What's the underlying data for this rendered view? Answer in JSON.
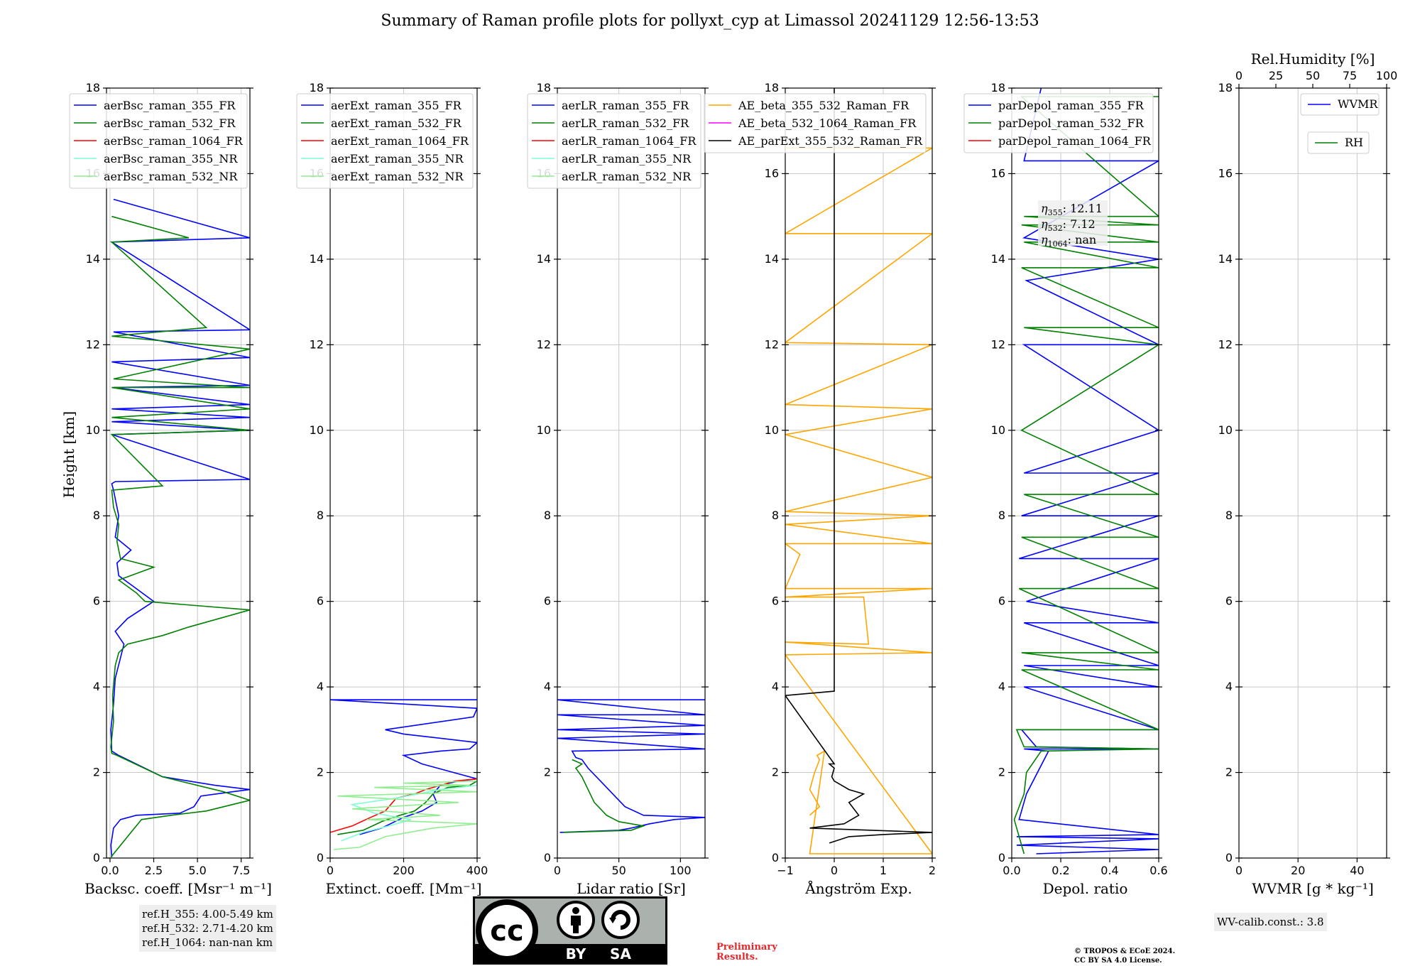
{
  "title": "Summary of Raman profile plots for pollyxt_cyp at Limassol 20241129 12:56-13:53",
  "ylabel": "Height [km]",
  "y_ticks": [
    "0",
    "2",
    "4",
    "6",
    "8",
    "10",
    "12",
    "14",
    "16",
    "18"
  ],
  "chart_data": [
    {
      "type": "line",
      "xlabel": "Backsc. coeff. [Msr⁻¹ m⁻¹]",
      "xlim": [
        -0.2,
        8
      ],
      "ylim": [
        0,
        18
      ],
      "x_ticks": [
        "0.0",
        "2.5",
        "5.0",
        "7.5"
      ],
      "x_tick_values": [
        0,
        2.5,
        5,
        7.5
      ],
      "legend": "top-left",
      "grid": true,
      "series": [
        {
          "name": "aerBsc_raman_355_FR",
          "color": "#0000ff",
          "x": [
            0.1,
            0.05,
            0.2,
            0.6,
            1.5,
            4.0,
            4.8,
            5.2,
            7.0,
            8.0,
            6.0,
            3.0,
            0.5,
            0.1,
            0.05,
            0.2,
            0.3,
            0.8,
            0.3,
            1.0,
            2.5,
            1.5,
            0.5,
            0.4,
            1.2,
            0.3,
            0.5,
            0.2,
            0.1,
            0.3,
            8,
            0.1,
            8,
            0.1,
            8,
            0.1,
            8,
            0.2,
            8,
            0.1,
            8,
            0.2,
            8,
            0.1,
            8,
            0.2
          ],
          "y": [
            0.02,
            0.3,
            0.7,
            0.9,
            1.0,
            1.05,
            1.2,
            1.45,
            1.55,
            1.6,
            1.7,
            1.9,
            2.4,
            2.5,
            3.0,
            3.6,
            4.2,
            5.0,
            5.3,
            5.6,
            6.0,
            6.3,
            6.6,
            6.9,
            7.2,
            7.5,
            8.0,
            8.6,
            8.75,
            8.8,
            8.85,
            9.9,
            10.0,
            10.2,
            10.3,
            10.5,
            10.6,
            11.0,
            11.05,
            11.6,
            11.7,
            12.3,
            12.35,
            14.4,
            14.5,
            15.4
          ]
        },
        {
          "name": "aerBsc_raman_532_FR",
          "color": "#008000",
          "x": [
            0.05,
            1.2,
            1.8,
            3.5,
            5.5,
            7.0,
            8.0,
            6.5,
            3.0,
            0.4,
            0.1,
            0.05,
            0.2,
            0.15,
            0.3,
            0.5,
            1.0,
            3.0,
            4.5,
            8.0,
            2.0,
            1.5,
            0.5,
            2.5,
            0.6,
            0.4,
            0.5,
            0.2,
            0.1,
            3.0,
            0.1,
            8,
            0.1,
            8,
            0.1,
            8,
            0.2,
            8,
            0.1,
            5.5,
            0.1,
            4.5,
            0.1
          ],
          "y": [
            0.02,
            0.6,
            0.9,
            1.0,
            1.1,
            1.25,
            1.35,
            1.55,
            1.9,
            2.4,
            2.45,
            2.6,
            3.2,
            3.8,
            4.5,
            4.8,
            5.0,
            5.2,
            5.4,
            5.8,
            6.0,
            6.2,
            6.5,
            6.8,
            7.0,
            7.4,
            7.8,
            8.2,
            8.6,
            8.7,
            9.9,
            10.0,
            10.3,
            10.5,
            11.0,
            11.0,
            11.2,
            11.9,
            12.2,
            12.4,
            14.4,
            14.5,
            15.0
          ]
        },
        {
          "name": "aerBsc_raman_1064_FR",
          "color": "#ff0000",
          "x": [],
          "y": []
        },
        {
          "name": "aerBsc_raman_355_NR",
          "color": "#7fffd4",
          "x": [],
          "y": []
        },
        {
          "name": "aerBsc_raman_532_NR",
          "color": "#90ee90",
          "x": [],
          "y": []
        }
      ]
    },
    {
      "type": "line",
      "xlabel": "Extinct. coeff. [Mm⁻¹]",
      "xlim": [
        0,
        400
      ],
      "ylim": [
        0,
        18
      ],
      "x_ticks": [
        "0",
        "200",
        "400"
      ],
      "x_tick_values": [
        0,
        200,
        400
      ],
      "legend": "top-left",
      "grid": true,
      "series": [
        {
          "name": "aerExt_raman_355_FR",
          "color": "#0000ff",
          "x": [
            80,
            140,
            200,
            250,
            290,
            280,
            300,
            350,
            400,
            250,
            200,
            300,
            380,
            400,
            200,
            150,
            390,
            400,
            0,
            400
          ],
          "y": [
            0.55,
            0.7,
            0.95,
            1.1,
            1.3,
            1.5,
            1.7,
            1.8,
            1.85,
            2.2,
            2.4,
            2.5,
            2.55,
            2.7,
            2.9,
            3.0,
            3.3,
            3.5,
            3.7,
            3.7
          ]
        },
        {
          "name": "aerExt_raman_532_FR",
          "color": "#008000",
          "x": [
            20,
            90,
            140,
            190,
            230,
            260,
            280,
            320,
            380,
            400
          ],
          "y": [
            0.55,
            0.65,
            0.85,
            1.0,
            1.1,
            1.3,
            1.5,
            1.65,
            1.7,
            1.8
          ]
        },
        {
          "name": "aerExt_raman_1064_FR",
          "color": "#ff0000",
          "x": [
            0,
            60,
            110,
            150,
            180,
            230,
            260,
            300,
            340,
            400
          ],
          "y": [
            0.6,
            0.75,
            0.95,
            1.1,
            1.4,
            1.5,
            1.6,
            1.7,
            1.8,
            1.85
          ]
        },
        {
          "name": "aerExt_raman_355_NR",
          "color": "#7fffd4",
          "x": [
            30,
            90,
            160,
            220,
            120,
            60,
            180,
            300,
            400,
            400
          ],
          "y": [
            0.4,
            0.6,
            0.75,
            0.9,
            1.05,
            1.25,
            1.4,
            1.6,
            1.7,
            2.4
          ]
        },
        {
          "name": "aerExt_raman_532_NR",
          "color": "#90ee90",
          "x": [
            10,
            80,
            150,
            280,
            400,
            100,
            300,
            60,
            350,
            20,
            400,
            120,
            380,
            200,
            400
          ],
          "y": [
            0.2,
            0.25,
            0.5,
            0.7,
            0.8,
            0.9,
            1.0,
            1.15,
            1.3,
            1.45,
            1.55,
            1.65,
            1.7,
            1.75,
            1.8
          ]
        }
      ]
    },
    {
      "type": "line",
      "xlabel": "Lidar ratio [Sr]",
      "xlim": [
        0,
        120
      ],
      "ylim": [
        0,
        18
      ],
      "x_ticks": [
        "0",
        "50",
        "100"
      ],
      "x_tick_values": [
        0,
        50,
        100
      ],
      "legend": "top-left",
      "grid": true,
      "series": [
        {
          "name": "aerLR_raman_355_FR",
          "color": "#0000ff",
          "x": [
            2,
            50,
            60,
            75,
            95,
            120,
            70,
            55,
            45,
            35,
            25,
            20,
            15,
            12,
            120,
            0,
            120,
            0,
            120,
            0,
            120,
            0,
            120
          ],
          "y": [
            0.6,
            0.65,
            0.7,
            0.8,
            0.9,
            0.95,
            1.0,
            1.2,
            1.5,
            1.8,
            2.1,
            2.3,
            2.35,
            2.5,
            2.55,
            2.8,
            2.9,
            3.0,
            3.1,
            3.35,
            3.35,
            3.7,
            3.7
          ]
        },
        {
          "name": "aerLR_raman_532_FR",
          "color": "#008000",
          "x": [
            5,
            60,
            70,
            50,
            40,
            30,
            25,
            20,
            15,
            20,
            12
          ],
          "y": [
            0.6,
            0.65,
            0.75,
            0.85,
            1.0,
            1.3,
            1.6,
            1.9,
            2.1,
            2.2,
            2.3
          ]
        },
        {
          "name": "aerLR_raman_1064_FR",
          "color": "#ff0000",
          "x": [],
          "y": []
        },
        {
          "name": "aerLR_raman_355_NR",
          "color": "#7fffd4",
          "x": [],
          "y": []
        },
        {
          "name": "aerLR_raman_532_NR",
          "color": "#90ee90",
          "x": [],
          "y": []
        }
      ]
    },
    {
      "type": "line",
      "xlabel": "Ångström Exp.",
      "xlim": [
        -1,
        2
      ],
      "ylim": [
        0,
        18
      ],
      "x_ticks": [
        "−1",
        "0",
        "1",
        "2"
      ],
      "x_tick_values": [
        -1,
        0,
        1,
        2
      ],
      "legend": "top-center",
      "grid": true,
      "series": [
        {
          "name": "AE_beta_355_532_Raman_FR",
          "color": "#ffa500",
          "x": [
            -0.5,
            -0.3,
            -0.5,
            -0.4,
            -0.3,
            -0.35,
            -0.2,
            -0.5,
            2,
            -1,
            2,
            -1,
            0.7,
            0.6,
            -1,
            2,
            -1,
            -0.7,
            -1,
            2,
            -1,
            2,
            -1,
            2,
            -1,
            2,
            -1,
            2,
            -1,
            2,
            -1,
            2,
            -1
          ],
          "y": [
            1.0,
            1.2,
            1.6,
            2.0,
            2.3,
            2.4,
            2.5,
            0.1,
            0.1,
            4.75,
            4.8,
            5.05,
            5.0,
            6.1,
            6.1,
            6.3,
            6.3,
            7.1,
            7.35,
            7.35,
            7.8,
            8.0,
            8.1,
            8.9,
            9.9,
            10.5,
            10.6,
            12.0,
            12.05,
            14.6,
            14.6,
            16.6,
            16.6
          ]
        },
        {
          "name": "AE_beta_532_1064_Raman_FR",
          "color": "#ff00ff",
          "x": [],
          "y": []
        },
        {
          "name": "AE_parExt_355_532_Raman_FR",
          "color": "#000000",
          "x": [
            -0.1,
            0.3,
            1.0,
            2.0,
            -0.5,
            0.2,
            0.5,
            0.3,
            0.6,
            0.3,
            0.0,
            -0.05,
            0.0,
            -0.1,
            0.0,
            -1,
            0,
            0,
            0,
            0
          ],
          "y": [
            0.35,
            0.5,
            0.55,
            0.6,
            0.7,
            0.8,
            1.0,
            1.3,
            1.5,
            1.6,
            1.8,
            1.9,
            2.1,
            2.2,
            2.2,
            3.8,
            3.9,
            10.0,
            15.0,
            18.0
          ]
        }
      ]
    },
    {
      "type": "line",
      "xlabel": "Depol. ratio",
      "xlim": [
        0,
        0.6
      ],
      "ylim": [
        0,
        18
      ],
      "x_ticks": [
        "0.0",
        "0.2",
        "0.4",
        "0.6"
      ],
      "x_tick_values": [
        0,
        0.2,
        0.4,
        0.6
      ],
      "legend": "top-left",
      "grid": true,
      "annotations": [
        {
          "subscript": "355",
          "text": ": 12.11"
        },
        {
          "subscript": "532",
          "text": ": 7.12"
        },
        {
          "subscript": "1064",
          "text": ": nan"
        }
      ],
      "series": [
        {
          "name": "parDepol_raman_355_FR",
          "color": "#0000ff",
          "x": [
            0.1,
            0.6,
            0.02,
            0.6,
            0.02,
            0.6,
            0.03,
            0.06,
            0.15,
            0.05,
            0.6,
            0.1,
            0.04,
            0.6,
            0.05,
            0.6,
            0.05,
            0.6,
            0.05,
            0.6,
            0.06,
            0.6,
            0.03,
            0.6,
            0.04,
            0.6,
            0.05,
            0.6,
            0.05,
            0.6,
            0.06,
            0.6,
            0.05,
            0.6,
            0.05,
            0.12
          ],
          "y": [
            0.1,
            0.2,
            0.3,
            0.45,
            0.5,
            0.55,
            0.9,
            1.5,
            2.5,
            2.55,
            2.55,
            2.6,
            3.0,
            3.0,
            4.0,
            4.0,
            4.5,
            4.5,
            5.5,
            5.5,
            6.0,
            7.0,
            7.0,
            8.0,
            8.0,
            9.0,
            9.0,
            10.0,
            12.0,
            12.0,
            13.5,
            14.0,
            14.5,
            16.3,
            16.3,
            18.0
          ]
        },
        {
          "name": "parDepol_raman_532_FR",
          "color": "#008000",
          "x": [
            0.05,
            0.01,
            0.05,
            0.06,
            0.12,
            0.6,
            0.05,
            0.02,
            0.6,
            0.04,
            0.6,
            0.04,
            0.6,
            0.03,
            0.6,
            0.04,
            0.6,
            0.05,
            0.6,
            0.04,
            0.6,
            0.05,
            0.6,
            0.04,
            0.6,
            0.05,
            0.6,
            0.04,
            0.6,
            0.05,
            0.6,
            0.04,
            0.6
          ],
          "y": [
            0.1,
            0.9,
            1.5,
            2.0,
            2.5,
            2.55,
            2.6,
            3.0,
            3.0,
            4.4,
            4.4,
            4.8,
            4.8,
            6.3,
            6.3,
            7.5,
            7.5,
            8.5,
            8.5,
            10.0,
            12.0,
            12.4,
            12.4,
            13.8,
            13.8,
            14.4,
            14.4,
            14.8,
            14.8,
            15.0,
            15.0,
            17.8,
            17.8
          ]
        },
        {
          "name": "parDepol_raman_1064_FR",
          "color": "#ff0000",
          "x": [],
          "y": []
        }
      ]
    },
    {
      "type": "line",
      "xlabel": "WVMR [g * kg⁻¹]",
      "xlim": [
        0,
        50
      ],
      "ylim": [
        0,
        18
      ],
      "x_ticks": [
        "0",
        "20",
        "40"
      ],
      "x_tick_values": [
        0,
        20,
        40
      ],
      "top_xlabel": "Rel.Humidity [%]",
      "top_x_ticks": [
        "0",
        "25",
        "50",
        "75",
        "100"
      ],
      "top_x_tick_values": [
        0,
        25,
        50,
        75,
        100
      ],
      "legend": "top-right",
      "grid": true,
      "series": [
        {
          "name": "WVMR",
          "color": "#0000ff",
          "x": [],
          "y": []
        },
        {
          "name": "RH",
          "color": "#008000",
          "x": [],
          "y": []
        }
      ]
    }
  ],
  "ref_heights": {
    "line1": "ref.H_355: 4.00-5.49 km",
    "line2": "ref.H_532: 2.71-4.20 km",
    "line3": "ref.H_1064: nan-nan km"
  },
  "license_badge": {
    "by": "BY",
    "sa": "SA",
    "cc": "cc"
  },
  "preliminary": {
    "line1": "Preliminary",
    "line2": "Results."
  },
  "copyright": {
    "line1": "© TROPOS & ECoE 2024.",
    "line2": "CC BY SA 4.0 License."
  },
  "wv_calib": "WV-calib.const.: 3.8"
}
